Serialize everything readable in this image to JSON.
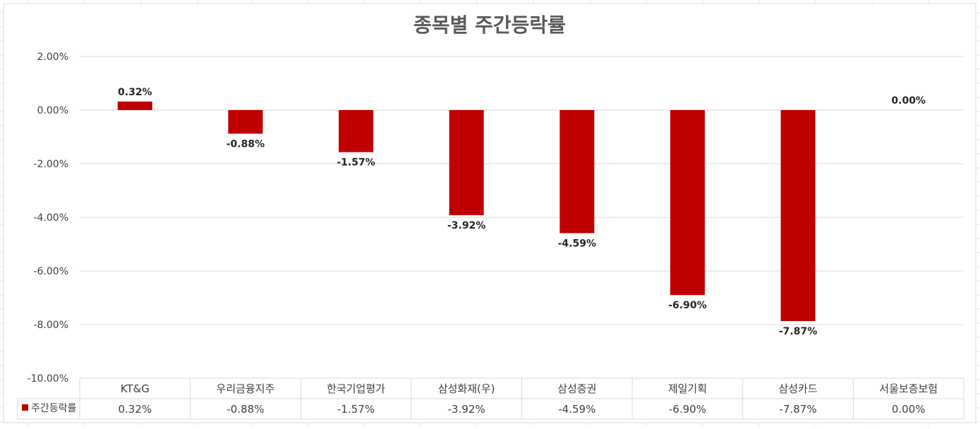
{
  "chart_data": {
    "type": "bar",
    "title": "종목별 주간등락률",
    "categories": [
      "KT&G",
      "우리금융지주",
      "한국기업평가",
      "삼성화재(우)",
      "삼성증권",
      "제일기획",
      "삼성카드",
      "서울보증보험"
    ],
    "series": [
      {
        "name": "주간등락률",
        "values": [
          0.32,
          -0.88,
          -1.57,
          -3.92,
          -4.59,
          -6.9,
          -7.87,
          0.0
        ],
        "labels": [
          "0.32%",
          "-0.88%",
          "-1.57%",
          "-3.92%",
          "-4.59%",
          "-6.90%",
          "-7.87%",
          "0.00%"
        ],
        "color": "#C00000"
      }
    ],
    "ylim": [
      -10,
      2
    ],
    "yticks": [
      2,
      0,
      -2,
      -4,
      -6,
      -8,
      -10
    ],
    "ytick_labels": [
      "2.00%",
      "0.00%",
      "-2.00%",
      "-4.00%",
      "-6.00%",
      "-8.00%",
      "-10.00%"
    ],
    "grid": true,
    "legend": "data-table",
    "xlabel": "",
    "ylabel": ""
  },
  "colors": {
    "bar": "#C00000",
    "grid": "#D9D9D9",
    "sheet_grid": "#E6E6E6"
  }
}
